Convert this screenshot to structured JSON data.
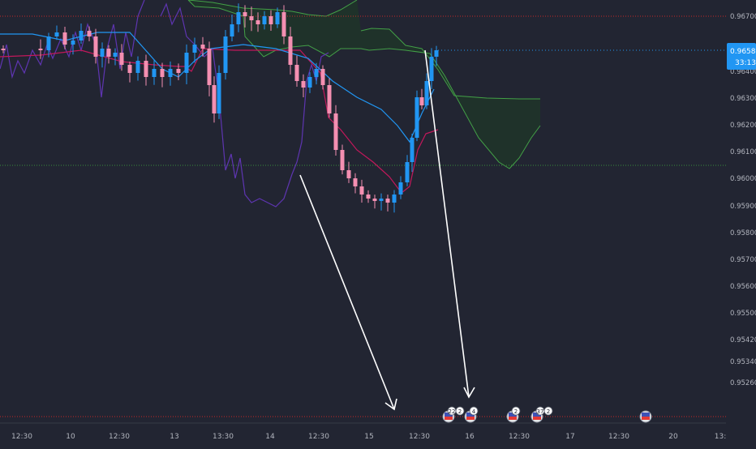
{
  "chart_data": {
    "type": "candlestick",
    "y_ticks": [
      "0.96700",
      "0.96500",
      "0.96400",
      "0.96300",
      "0.96200",
      "0.96100",
      "0.96000",
      "0.95900",
      "0.95800",
      "0.95700",
      "0.95600",
      "0.95500",
      "0.95420",
      "0.95340",
      "0.95260"
    ],
    "x_ticks": [
      "12:30",
      "10",
      "12:30",
      "13",
      "13:30",
      "14",
      "12:30",
      "15",
      "12:30",
      "16",
      "12:30",
      "17",
      "12:30",
      "20",
      "13:"
    ],
    "price_label": {
      "value": "0.96580",
      "countdown": "33:13"
    },
    "ylim": [
      0.9519,
      0.9686
    ],
    "grid": false,
    "events": [
      {
        "badges": [
          "22",
          "2"
        ]
      },
      {
        "badges": [
          "4"
        ]
      },
      {
        "badges": [
          "2"
        ]
      },
      {
        "badges": [
          "37",
          "2"
        ]
      },
      {
        "badges": []
      }
    ],
    "colors": {
      "background": "#222532",
      "bull": "#2196f3",
      "bear": "#f48fb1",
      "tenkan": "#2196f3",
      "kijun": "#c2185b",
      "lagging": "#5e35b1",
      "cloud_line": "#43a047",
      "cloud_fill": "#1e3326",
      "upper_ref_line": "#c62828",
      "mid_ref_line": "#388e3c",
      "annotation": "#ffffff",
      "axis_text": "#b2b5be",
      "label_bg": "#2196f3"
    }
  }
}
